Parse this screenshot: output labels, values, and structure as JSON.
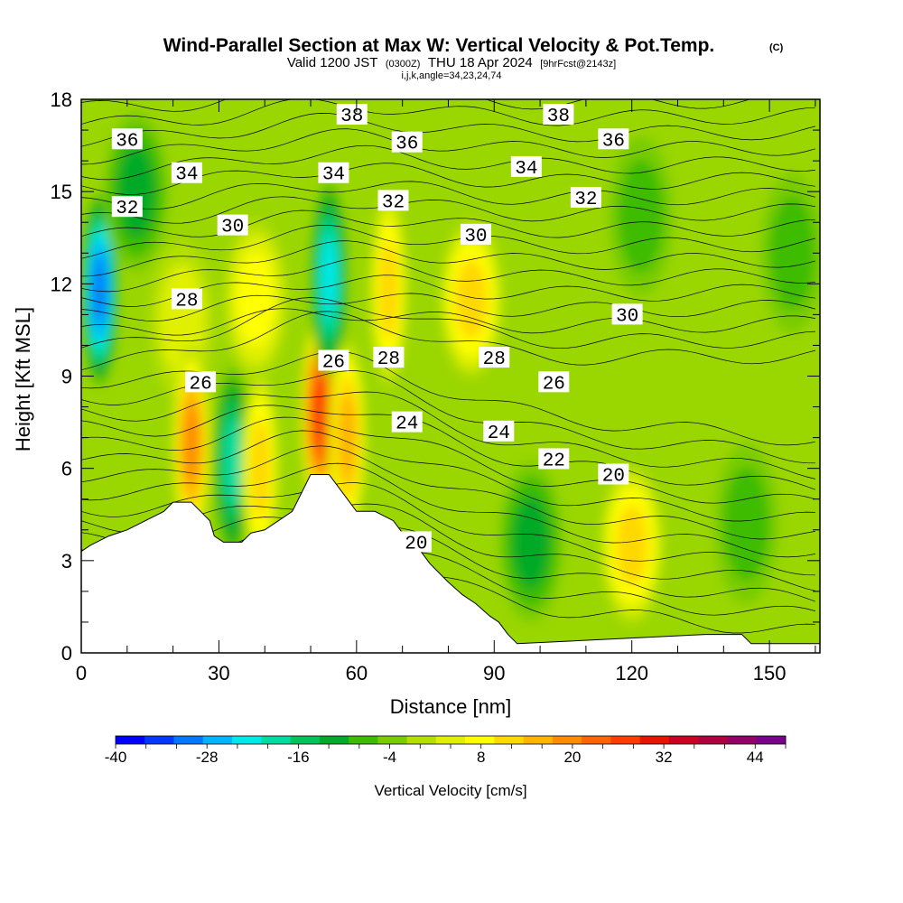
{
  "header": {
    "title": "Wind-Parallel Section at Max W: Vertical Velocity & Pot.Temp.",
    "copyright": "(C)",
    "valid_prefix": "Valid 1200 JST",
    "valid_utc": "(0300Z)",
    "valid_date": "THU 18 Apr 2024",
    "forecast_info": "[9hrFcst@2143z]",
    "indices": "i,j,k,angle=34,23,24,74"
  },
  "chart_data": {
    "type": "heatmap",
    "title": "Wind-Parallel Section at Max W: Vertical Velocity & Pot.Temp.",
    "xlabel": "Distance [nm]",
    "ylabel": "Height [Kft MSL]",
    "xlim": [
      0,
      161
    ],
    "ylim": [
      0,
      18
    ],
    "xticks": [
      0,
      30,
      60,
      90,
      120,
      150
    ],
    "yticks": [
      0,
      3,
      6,
      9,
      12,
      15,
      18
    ],
    "terrain": [
      [
        0,
        3.3
      ],
      [
        2,
        3.5
      ],
      [
        6,
        3.8
      ],
      [
        10,
        4.0
      ],
      [
        14,
        4.3
      ],
      [
        18,
        4.6
      ],
      [
        20,
        4.9
      ],
      [
        24,
        4.9
      ],
      [
        26,
        4.6
      ],
      [
        28,
        4.3
      ],
      [
        29,
        3.8
      ],
      [
        31,
        3.6
      ],
      [
        35,
        3.6
      ],
      [
        37,
        3.9
      ],
      [
        40,
        4.0
      ],
      [
        43,
        4.3
      ],
      [
        46,
        4.6
      ],
      [
        48,
        5.2
      ],
      [
        50,
        5.8
      ],
      [
        54,
        5.8
      ],
      [
        56,
        5.4
      ],
      [
        58,
        5.0
      ],
      [
        60,
        4.6
      ],
      [
        64,
        4.6
      ],
      [
        68,
        4.3
      ],
      [
        70,
        3.9
      ],
      [
        72,
        3.6
      ],
      [
        74,
        3.3
      ],
      [
        76,
        2.9
      ],
      [
        78,
        2.6
      ],
      [
        80,
        2.3
      ],
      [
        83,
        1.9
      ],
      [
        86,
        1.6
      ],
      [
        89,
        1.2
      ],
      [
        91,
        1.0
      ],
      [
        93,
        0.6
      ],
      [
        95,
        0.3
      ],
      [
        136,
        0.6
      ],
      [
        144,
        0.6
      ],
      [
        146,
        0.3
      ],
      [
        161,
        0.3
      ]
    ],
    "vertical_velocity_cores": [
      {
        "x": 4,
        "y": 11.8,
        "w": -33
      },
      {
        "x": 12,
        "y": 15.0,
        "w": -12
      },
      {
        "x": 22,
        "y": 10.8,
        "w": 6
      },
      {
        "x": 24,
        "y": 6.8,
        "w": 22
      },
      {
        "x": 33,
        "y": 6.2,
        "w": -18
      },
      {
        "x": 38,
        "y": 11.5,
        "w": 10
      },
      {
        "x": 39,
        "y": 6.0,
        "w": 17
      },
      {
        "x": 52,
        "y": 7.8,
        "w": 30
      },
      {
        "x": 54,
        "y": 12.2,
        "w": -22
      },
      {
        "x": 58,
        "y": 7.0,
        "w": 18
      },
      {
        "x": 67,
        "y": 11.8,
        "w": 17
      },
      {
        "x": 85,
        "y": 11.5,
        "w": 15
      },
      {
        "x": 98,
        "y": 3.6,
        "w": -10
      },
      {
        "x": 120,
        "y": 3.5,
        "w": 14
      },
      {
        "x": 122,
        "y": 14.2,
        "w": -9
      },
      {
        "x": 145,
        "y": 4.2,
        "w": -6
      },
      {
        "x": 155,
        "y": 13.0,
        "w": -9
      }
    ],
    "theta_contour_labels": [
      {
        "text": "36",
        "x": 10,
        "y": 16.7
      },
      {
        "text": "34",
        "x": 23,
        "y": 15.6
      },
      {
        "text": "32",
        "x": 10,
        "y": 14.5
      },
      {
        "text": "30",
        "x": 33,
        "y": 13.9
      },
      {
        "text": "28",
        "x": 23,
        "y": 11.5
      },
      {
        "text": "26",
        "x": 26,
        "y": 8.8
      },
      {
        "text": "38",
        "x": 59,
        "y": 17.5
      },
      {
        "text": "34",
        "x": 55,
        "y": 15.6
      },
      {
        "text": "36",
        "x": 71,
        "y": 16.6
      },
      {
        "text": "32",
        "x": 68,
        "y": 14.7
      },
      {
        "text": "26",
        "x": 55,
        "y": 9.5
      },
      {
        "text": "28",
        "x": 67,
        "y": 9.6
      },
      {
        "text": "30",
        "x": 86,
        "y": 13.6
      },
      {
        "text": "24",
        "x": 71,
        "y": 7.5
      },
      {
        "text": "20",
        "x": 73,
        "y": 3.6
      },
      {
        "text": "28",
        "x": 90,
        "y": 9.6
      },
      {
        "text": "24",
        "x": 91,
        "y": 7.2
      },
      {
        "text": "34",
        "x": 97,
        "y": 15.8
      },
      {
        "text": "38",
        "x": 104,
        "y": 17.5
      },
      {
        "text": "26",
        "x": 103,
        "y": 8.8
      },
      {
        "text": "22",
        "x": 103,
        "y": 6.3
      },
      {
        "text": "32",
        "x": 110,
        "y": 14.8
      },
      {
        "text": "36",
        "x": 116,
        "y": 16.7
      },
      {
        "text": "20",
        "x": 116,
        "y": 5.8
      },
      {
        "text": "30",
        "x": 119,
        "y": 11.0
      }
    ],
    "colorbar": {
      "label": "Vertical Velocity [cm/s]",
      "ticks": [
        "-40",
        "-28",
        "-16",
        "-4",
        "8",
        "20",
        "32",
        "44"
      ],
      "min": -40,
      "max": 48,
      "step": 4,
      "colors": [
        "#0000ff",
        "#0038ff",
        "#0078ff",
        "#00b4ff",
        "#00e8e8",
        "#00dca0",
        "#00c45a",
        "#00aa28",
        "#3cbc00",
        "#78cc00",
        "#b4e000",
        "#e0f000",
        "#ffff00",
        "#ffd800",
        "#ffb400",
        "#ff8c00",
        "#ff6400",
        "#ff3c00",
        "#e61400",
        "#cc0022",
        "#b00040",
        "#940066",
        "#78008a"
      ]
    }
  }
}
